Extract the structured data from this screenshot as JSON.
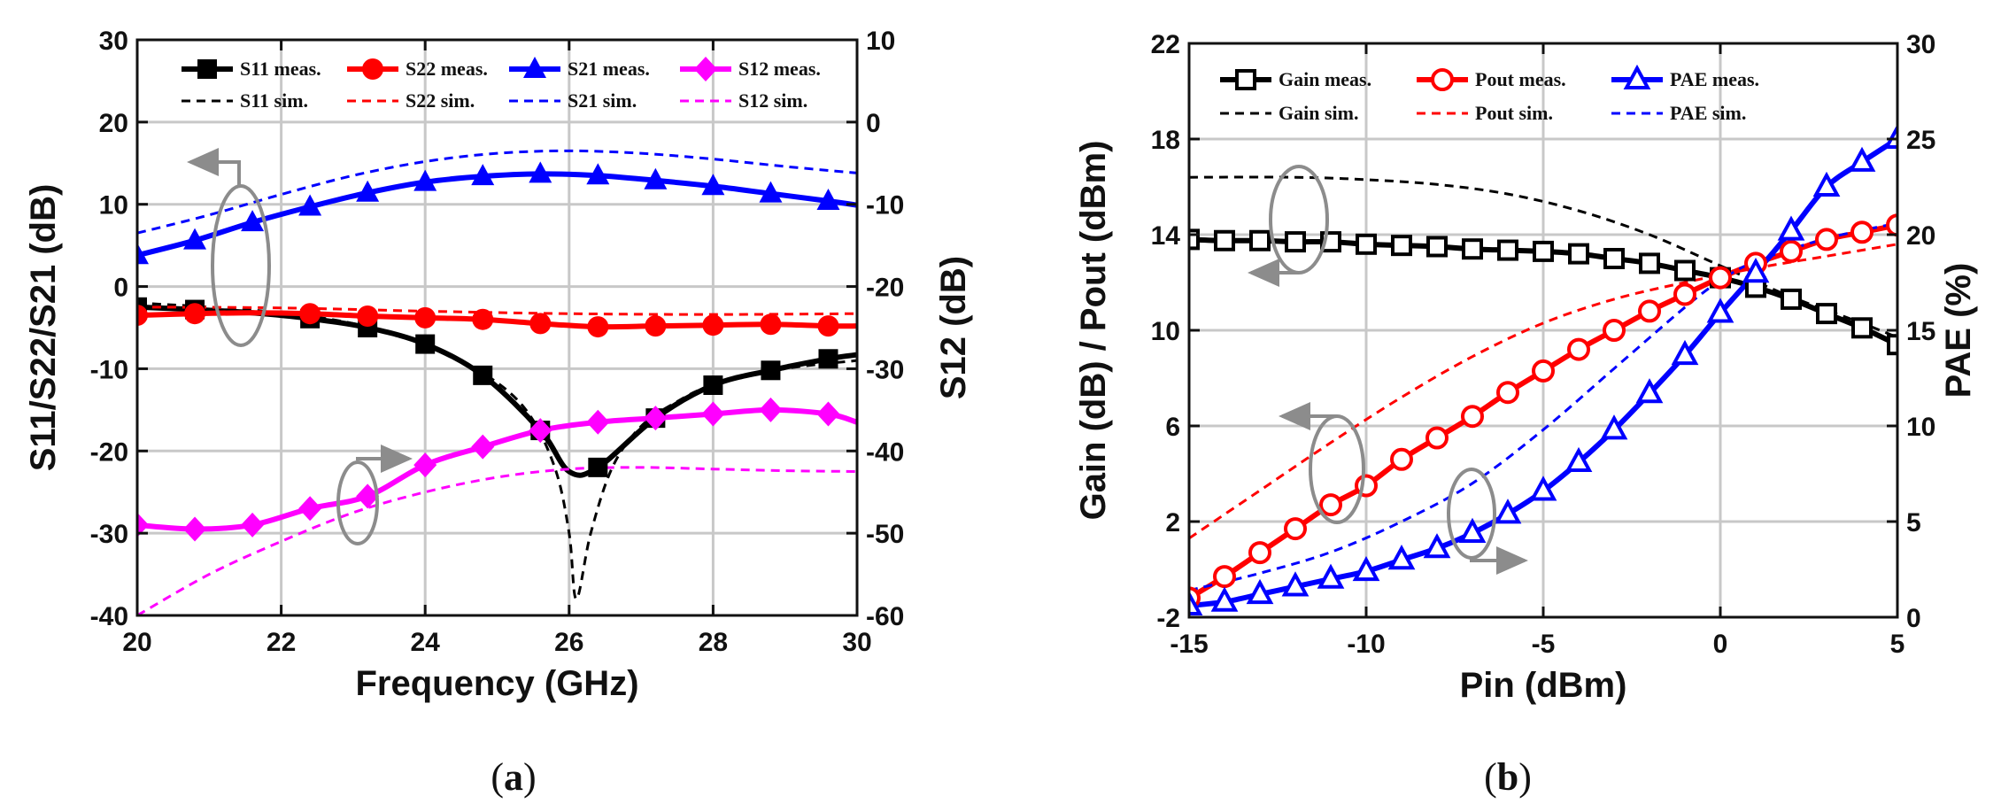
{
  "captions": [
    {
      "open": "(",
      "letter": "a",
      "close": ")"
    },
    {
      "open": "(",
      "letter": "b",
      "close": ")"
    }
  ],
  "chart_data": [
    {
      "type": "line",
      "xlabel": "Frequency (GHz)",
      "ylabel": "S11/S22/S21 (dB)",
      "y2label": "S12 (dB)",
      "xlim": [
        20,
        30
      ],
      "ylim": [
        -40,
        30
      ],
      "y2lim": [
        -60,
        10
      ],
      "xticks": [
        20,
        22,
        24,
        26,
        28,
        30
      ],
      "yticks": [
        -40,
        -30,
        -20,
        -10,
        0,
        10,
        20,
        30
      ],
      "y2ticks": [
        -60,
        -50,
        -40,
        -30,
        -20,
        -10,
        0,
        10
      ],
      "grid": true,
      "legend_position": "top",
      "series": [
        {
          "name": "S11 meas.",
          "axis": "left",
          "color": "#000000",
          "style": "solid",
          "marker": "square",
          "x": [
            20,
            20.8,
            21.6,
            22.4,
            23.2,
            24,
            24.8,
            25.6,
            26,
            26.4,
            27.2,
            28,
            28.8,
            29.6,
            30
          ],
          "y": [
            -2.5,
            -2.8,
            -3.2,
            -3.9,
            -5.0,
            -7.0,
            -10.8,
            -17.5,
            -22.5,
            -22,
            -16,
            -12,
            -10.2,
            -8.8,
            -8.3
          ],
          "marker_x": [
            20,
            20.8,
            22.4,
            23.2,
            24,
            24.8,
            25.6,
            26.4,
            27.2,
            28,
            28.8,
            29.6
          ]
        },
        {
          "name": "S11 sim.",
          "axis": "left",
          "color": "#000000",
          "style": "dashed",
          "marker": "none",
          "x": [
            20,
            21,
            22,
            23,
            24,
            24.8,
            25.4,
            25.8,
            26,
            26.1,
            26.3,
            26.6,
            27,
            27.5,
            28,
            29,
            30
          ],
          "y": [
            -2,
            -2.5,
            -3.2,
            -4.5,
            -7,
            -10.5,
            -15,
            -22,
            -30,
            -38,
            -30,
            -22,
            -17,
            -14,
            -12,
            -10,
            -9
          ]
        },
        {
          "name": "S22 meas.",
          "axis": "left",
          "color": "#ff0000",
          "style": "solid",
          "marker": "circle",
          "x": [
            20,
            20.8,
            21.6,
            22.4,
            23.2,
            24,
            24.8,
            25.6,
            26.4,
            27.2,
            28,
            28.8,
            29.6,
            30
          ],
          "y": [
            -3.5,
            -3.3,
            -3.2,
            -3.3,
            -3.6,
            -3.8,
            -4.0,
            -4.5,
            -4.9,
            -4.8,
            -4.7,
            -4.6,
            -4.8,
            -4.8
          ],
          "marker_x": [
            20,
            20.8,
            22.4,
            23.2,
            24,
            24.8,
            25.6,
            26.4,
            27.2,
            28,
            28.8,
            29.6
          ]
        },
        {
          "name": "S22 sim.",
          "axis": "left",
          "color": "#ff0000",
          "style": "dashed",
          "marker": "none",
          "x": [
            20,
            22,
            24,
            26,
            28,
            30
          ],
          "y": [
            -2.5,
            -2.6,
            -3.0,
            -3.3,
            -3.4,
            -3.3
          ]
        },
        {
          "name": "S21 meas.",
          "axis": "left",
          "color": "#0000ff",
          "style": "solid",
          "marker": "triangle",
          "x": [
            20,
            20.8,
            21.6,
            22.4,
            23.2,
            24,
            24.8,
            25.6,
            26.4,
            27.2,
            28,
            28.8,
            29.6,
            30
          ],
          "y": [
            3.8,
            5.6,
            7.8,
            9.7,
            11.4,
            12.7,
            13.4,
            13.7,
            13.5,
            12.9,
            12.2,
            11.3,
            10.4,
            9.9
          ],
          "marker_x": [
            20,
            20.8,
            21.6,
            22.4,
            23.2,
            24,
            24.8,
            25.6,
            26.4,
            27.2,
            28,
            28.8,
            29.6
          ]
        },
        {
          "name": "S21 sim.",
          "axis": "left",
          "color": "#0000ff",
          "style": "dashed",
          "marker": "none",
          "x": [
            20,
            21,
            22,
            23,
            24,
            25,
            26,
            27,
            28,
            29,
            30
          ],
          "y": [
            6.5,
            8.7,
            11.2,
            13.5,
            15.2,
            16.2,
            16.5,
            16.2,
            15.5,
            14.6,
            13.8
          ]
        },
        {
          "name": "S12 meas.",
          "axis": "right",
          "color": "#ff00ff",
          "style": "solid",
          "marker": "diamond",
          "x": [
            20,
            20.8,
            21.6,
            22.4,
            23.2,
            24,
            24.8,
            25.6,
            26.4,
            27.2,
            28,
            28.8,
            29.6,
            30
          ],
          "y": [
            -49,
            -49.5,
            -49,
            -47,
            -45.5,
            -41.7,
            -39.5,
            -37.5,
            -36.5,
            -36,
            -35.5,
            -35,
            -35.5,
            -36.5
          ],
          "marker_x": [
            20,
            20.8,
            21.6,
            22.4,
            23.2,
            24,
            24.8,
            25.6,
            26.4,
            27.2,
            28,
            28.8,
            29.6
          ]
        },
        {
          "name": "S12 sim.",
          "axis": "right",
          "color": "#ff00ff",
          "style": "dashed",
          "marker": "none",
          "x": [
            20,
            21,
            22,
            23,
            24,
            25,
            26,
            27,
            28,
            29,
            30
          ],
          "y": [
            -60,
            -55,
            -51,
            -47.5,
            -45,
            -43.2,
            -42.2,
            -42,
            -42.2,
            -42.4,
            -42.5
          ]
        }
      ]
    },
    {
      "type": "line",
      "xlabel": "Pin (dBm)",
      "ylabel": "Gain (dB) / Pout (dBm)",
      "y2label": "PAE (%)",
      "xlim": [
        -15,
        5
      ],
      "ylim": [
        -2,
        22
      ],
      "y2lim": [
        0,
        30
      ],
      "xticks": [
        -15,
        -10,
        -5,
        0,
        5
      ],
      "yticks": [
        -2,
        2,
        6,
        10,
        14,
        18,
        22
      ],
      "y2ticks": [
        0,
        5,
        10,
        15,
        20,
        25,
        30
      ],
      "grid": true,
      "legend_position": "top",
      "series": [
        {
          "name": "Gain meas.",
          "axis": "left",
          "color": "#000000",
          "style": "solid",
          "marker": "open-square",
          "x": [
            -15,
            -14,
            -13,
            -12,
            -11,
            -10,
            -9,
            -8,
            -7,
            -6,
            -5,
            -4,
            -3,
            -2,
            -1,
            0,
            1,
            2,
            3,
            4,
            5
          ],
          "y": [
            13.8,
            13.75,
            13.75,
            13.7,
            13.7,
            13.6,
            13.55,
            13.5,
            13.4,
            13.35,
            13.3,
            13.2,
            13.0,
            12.8,
            12.5,
            12.2,
            11.8,
            11.3,
            10.7,
            10.1,
            9.4
          ]
        },
        {
          "name": "Gain sim.",
          "axis": "left",
          "color": "#000000",
          "style": "dashed",
          "marker": "none",
          "x": [
            -15,
            -12,
            -10,
            -8,
            -6,
            -4,
            -2,
            0,
            2,
            4,
            5
          ],
          "y": [
            16.4,
            16.4,
            16.3,
            16.1,
            15.7,
            15.0,
            14.0,
            12.7,
            11.4,
            10.3,
            9.7
          ]
        },
        {
          "name": "Pout meas.",
          "axis": "left",
          "color": "#ff0000",
          "style": "solid",
          "marker": "open-circle",
          "x": [
            -15,
            -14,
            -13,
            -12,
            -11,
            -10,
            -9,
            -8,
            -7,
            -6,
            -5,
            -4,
            -3,
            -2,
            -1,
            0,
            1,
            2,
            3,
            4,
            5
          ],
          "y": [
            -1.2,
            -0.3,
            0.7,
            1.7,
            2.7,
            3.5,
            4.6,
            5.5,
            6.4,
            7.4,
            8.3,
            9.2,
            10.0,
            10.8,
            11.5,
            12.2,
            12.8,
            13.3,
            13.8,
            14.1,
            14.4
          ]
        },
        {
          "name": "Pout sim.",
          "axis": "left",
          "color": "#ff0000",
          "style": "dashed",
          "marker": "none",
          "x": [
            -15,
            -13,
            -11,
            -9,
            -7,
            -5,
            -3,
            -1,
            1,
            3,
            5
          ],
          "y": [
            1.3,
            3.3,
            5.3,
            7.2,
            8.9,
            10.3,
            11.3,
            12.0,
            12.6,
            13.1,
            13.6
          ]
        },
        {
          "name": "PAE meas.",
          "axis": "right",
          "color": "#0000ff",
          "style": "solid",
          "marker": "open-triangle",
          "x": [
            -15,
            -14,
            -13,
            -12,
            -11,
            -10,
            -9,
            -8,
            -7,
            -6,
            -5,
            -4,
            -3,
            -2,
            -1,
            0,
            1,
            2,
            3,
            4,
            5
          ],
          "y": [
            0.6,
            0.8,
            1.2,
            1.6,
            2.0,
            2.4,
            3.0,
            3.6,
            4.4,
            5.4,
            6.6,
            8.1,
            9.8,
            11.7,
            13.7,
            15.9,
            18.0,
            20.2,
            22.5,
            23.8,
            25.0
          ]
        },
        {
          "name": "PAE sim.",
          "axis": "right",
          "color": "#0000ff",
          "style": "dashed",
          "marker": "none",
          "x": [
            -15,
            -13,
            -11,
            -9,
            -7,
            -5,
            -3,
            -1,
            0,
            1,
            3,
            5
          ],
          "y": [
            1.4,
            2.3,
            3.4,
            5.0,
            7.0,
            9.8,
            13.0,
            16.2,
            17.6,
            18.6,
            19.8,
            20.6
          ]
        }
      ]
    }
  ]
}
